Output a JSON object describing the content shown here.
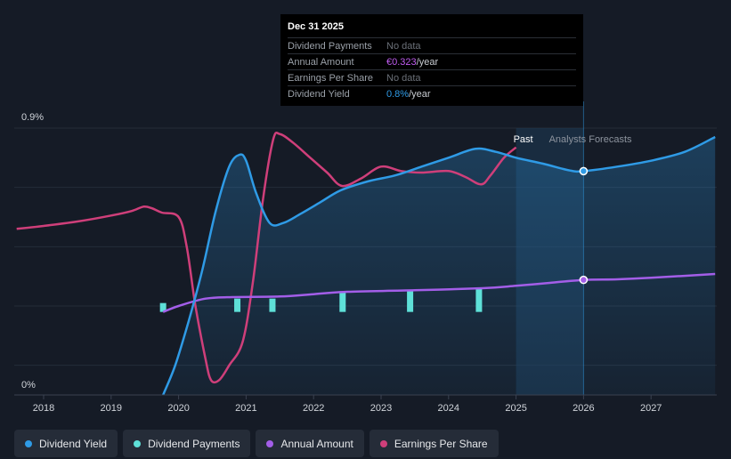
{
  "tooltip": {
    "date": "Dec 31 2025",
    "rows": [
      {
        "label": "Dividend Payments",
        "value": "No data",
        "unit": ""
      },
      {
        "label": "Annual Amount",
        "value": "€0.323",
        "unit": "/year"
      },
      {
        "label": "Earnings Per Share",
        "value": "No data",
        "unit": ""
      },
      {
        "label": "Dividend Yield",
        "value": "0.8%",
        "unit": "/year"
      }
    ]
  },
  "legend": [
    {
      "label": "Dividend Yield",
      "color": "#2f9be6"
    },
    {
      "label": "Dividend Payments",
      "color": "#5ee0d8"
    },
    {
      "label": "Annual Amount",
      "color": "#a35ee8"
    },
    {
      "label": "Earnings Per Share",
      "color": "#cf3f7a"
    }
  ],
  "colors": {
    "dividend_yield": "#2f9be6",
    "dividend_payments": "#5ee0d8",
    "annual_amount": "#a35ee8",
    "earnings_per_share": "#cf3f7a",
    "value_highlight": "#c05cf0",
    "yield_highlight": "#2f9be6"
  },
  "chart_data": {
    "type": "line",
    "y_axis": {
      "min_label": "0%",
      "max_label": "0.9%",
      "min": 0,
      "max": 0.9
    },
    "x_axis": {
      "ticks": [
        "2018",
        "2019",
        "2020",
        "2021",
        "2022",
        "2023",
        "2024",
        "2025",
        "2026",
        "2027"
      ],
      "range": [
        2017.6,
        2028.0
      ]
    },
    "past_label": "Past",
    "forecast_label": "Analysts Forecasts",
    "past_end": 2025.0,
    "forecast_end": 2026.0,
    "series": [
      {
        "name": "Dividend Yield",
        "key": "dividend_yield",
        "points": [
          [
            2019.77,
            0.0
          ],
          [
            2019.95,
            0.1
          ],
          [
            2020.15,
            0.25
          ],
          [
            2020.35,
            0.42
          ],
          [
            2020.55,
            0.62
          ],
          [
            2020.75,
            0.77
          ],
          [
            2020.9,
            0.81
          ],
          [
            2021.0,
            0.79
          ],
          [
            2021.15,
            0.68
          ],
          [
            2021.35,
            0.58
          ],
          [
            2021.55,
            0.58
          ],
          [
            2021.8,
            0.61
          ],
          [
            2022.1,
            0.65
          ],
          [
            2022.4,
            0.69
          ],
          [
            2022.8,
            0.72
          ],
          [
            2023.2,
            0.74
          ],
          [
            2023.6,
            0.77
          ],
          [
            2024.0,
            0.8
          ],
          [
            2024.4,
            0.83
          ],
          [
            2024.7,
            0.82
          ],
          [
            2025.0,
            0.8
          ],
          [
            2025.4,
            0.78
          ],
          [
            2025.8,
            0.757
          ],
          [
            2026.0,
            0.755
          ],
          [
            2026.5,
            0.77
          ],
          [
            2027.0,
            0.79
          ],
          [
            2027.5,
            0.82
          ],
          [
            2027.95,
            0.87
          ]
        ]
      },
      {
        "name": "Annual Amount",
        "key": "annual_amount",
        "points": [
          [
            2019.77,
            0.28
          ],
          [
            2020.0,
            0.3
          ],
          [
            2020.4,
            0.325
          ],
          [
            2020.8,
            0.33
          ],
          [
            2021.5,
            0.332
          ],
          [
            2022.0,
            0.34
          ],
          [
            2022.5,
            0.348
          ],
          [
            2023.5,
            0.353
          ],
          [
            2024.5,
            0.36
          ],
          [
            2025.0,
            0.368
          ],
          [
            2025.5,
            0.378
          ],
          [
            2026.0,
            0.388
          ],
          [
            2026.5,
            0.39
          ],
          [
            2027.0,
            0.395
          ],
          [
            2027.95,
            0.408
          ]
        ]
      },
      {
        "name": "Earnings Per Share",
        "key": "earnings_per_share",
        "points": [
          [
            2017.6,
            0.56
          ],
          [
            2018.0,
            0.57
          ],
          [
            2018.5,
            0.585
          ],
          [
            2019.0,
            0.605
          ],
          [
            2019.3,
            0.62
          ],
          [
            2019.48,
            0.635
          ],
          [
            2019.6,
            0.63
          ],
          [
            2019.75,
            0.615
          ],
          [
            2020.0,
            0.6
          ],
          [
            2020.12,
            0.5
          ],
          [
            2020.25,
            0.3
          ],
          [
            2020.4,
            0.12
          ],
          [
            2020.48,
            0.05
          ],
          [
            2020.6,
            0.05
          ],
          [
            2020.75,
            0.1
          ],
          [
            2020.95,
            0.18
          ],
          [
            2021.1,
            0.38
          ],
          [
            2021.25,
            0.66
          ],
          [
            2021.4,
            0.86
          ],
          [
            2021.5,
            0.88
          ],
          [
            2021.7,
            0.85
          ],
          [
            2021.95,
            0.8
          ],
          [
            2022.2,
            0.75
          ],
          [
            2022.42,
            0.705
          ],
          [
            2022.7,
            0.73
          ],
          [
            2023.0,
            0.77
          ],
          [
            2023.3,
            0.755
          ],
          [
            2023.6,
            0.75
          ],
          [
            2024.0,
            0.755
          ],
          [
            2024.25,
            0.735
          ],
          [
            2024.48,
            0.71
          ],
          [
            2024.62,
            0.74
          ],
          [
            2024.82,
            0.8
          ],
          [
            2025.0,
            0.835
          ]
        ]
      }
    ],
    "dividend_payments": [
      {
        "x": 2019.77,
        "y0": 0.28,
        "y1": 0.31
      },
      {
        "x": 2020.87,
        "y0": 0.28,
        "y1": 0.325
      },
      {
        "x": 2021.39,
        "y0": 0.28,
        "y1": 0.325
      },
      {
        "x": 2022.43,
        "y0": 0.28,
        "y1": 0.345
      },
      {
        "x": 2023.43,
        "y0": 0.28,
        "y1": 0.352
      },
      {
        "x": 2024.45,
        "y0": 0.28,
        "y1": 0.36
      }
    ],
    "markers": [
      {
        "series": "dividend_yield",
        "x": 2026.0,
        "y": 0.755
      },
      {
        "series": "annual_amount",
        "x": 2026.0,
        "y": 0.388
      }
    ]
  }
}
